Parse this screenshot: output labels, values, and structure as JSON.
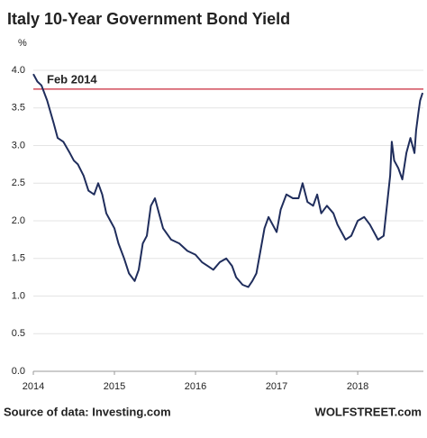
{
  "chart_data": {
    "type": "line",
    "title": "Italy 10-Year Government Bond Yield",
    "ylabel": "%",
    "source": "Source of data: Investing.com",
    "credit": "WOLFSTREET.com",
    "xlim": [
      2014,
      2018.81
    ],
    "xticks": [
      2014,
      2015,
      2016,
      2017,
      2018
    ],
    "ylim": [
      0,
      4
    ],
    "yticks": [
      {
        "value": 0,
        "label": "0.0"
      },
      {
        "value": 0.5,
        "label": "0.5"
      },
      {
        "value": 1,
        "label": "1.0"
      },
      {
        "value": 1.5,
        "label": "1.5"
      },
      {
        "value": 2,
        "label": "2.0"
      },
      {
        "value": 2.5,
        "label": "2.5"
      },
      {
        "value": 3,
        "label": "3.0"
      },
      {
        "value": 3.5,
        "label": "3.5"
      },
      {
        "value": 4,
        "label": "4.0"
      }
    ],
    "grid": true,
    "reference_line": {
      "value": 3.75,
      "label": "Feb 2014",
      "color": "#c8283a"
    },
    "x": [
      2014.0,
      2014.05,
      2014.1,
      2014.17,
      2014.25,
      2014.3,
      2014.37,
      2014.45,
      2014.5,
      2014.55,
      2014.62,
      2014.68,
      2014.75,
      2014.8,
      2014.85,
      2014.9,
      2014.95,
      2015.0,
      2015.05,
      2015.12,
      2015.18,
      2015.25,
      2015.3,
      2015.35,
      2015.4,
      2015.45,
      2015.5,
      2015.55,
      2015.6,
      2015.7,
      2015.8,
      2015.9,
      2016.0,
      2016.08,
      2016.15,
      2016.22,
      2016.3,
      2016.38,
      2016.45,
      2016.5,
      2016.58,
      2016.65,
      2016.7,
      2016.75,
      2016.8,
      2016.85,
      2016.9,
      2017.0,
      2017.05,
      2017.12,
      2017.2,
      2017.27,
      2017.32,
      2017.38,
      2017.45,
      2017.5,
      2017.55,
      2017.62,
      2017.7,
      2017.75,
      2017.8,
      2017.85,
      2017.92,
      2018.0,
      2018.08,
      2018.15,
      2018.2,
      2018.25,
      2018.32,
      2018.36,
      2018.4,
      2018.42,
      2018.45,
      2018.5,
      2018.55,
      2018.6,
      2018.65,
      2018.7,
      2018.72,
      2018.75,
      2018.77,
      2018.8
    ],
    "series": [
      {
        "name": "Italy 10-Year",
        "color": "#1f2d5c",
        "values": [
          3.95,
          3.85,
          3.8,
          3.6,
          3.3,
          3.1,
          3.05,
          2.9,
          2.8,
          2.75,
          2.6,
          2.4,
          2.35,
          2.5,
          2.35,
          2.1,
          2.0,
          1.9,
          1.7,
          1.5,
          1.3,
          1.2,
          1.35,
          1.7,
          1.8,
          2.2,
          2.3,
          2.1,
          1.9,
          1.75,
          1.7,
          1.6,
          1.55,
          1.45,
          1.4,
          1.35,
          1.45,
          1.5,
          1.4,
          1.25,
          1.15,
          1.12,
          1.2,
          1.3,
          1.6,
          1.9,
          2.05,
          1.85,
          2.15,
          2.35,
          2.3,
          2.3,
          2.5,
          2.25,
          2.2,
          2.35,
          2.1,
          2.2,
          2.1,
          1.95,
          1.85,
          1.75,
          1.8,
          2.0,
          2.05,
          1.95,
          1.85,
          1.75,
          1.8,
          2.2,
          2.6,
          3.05,
          2.8,
          2.7,
          2.55,
          2.9,
          3.1,
          2.9,
          3.2,
          3.45,
          3.6,
          3.7
        ]
      }
    ]
  }
}
